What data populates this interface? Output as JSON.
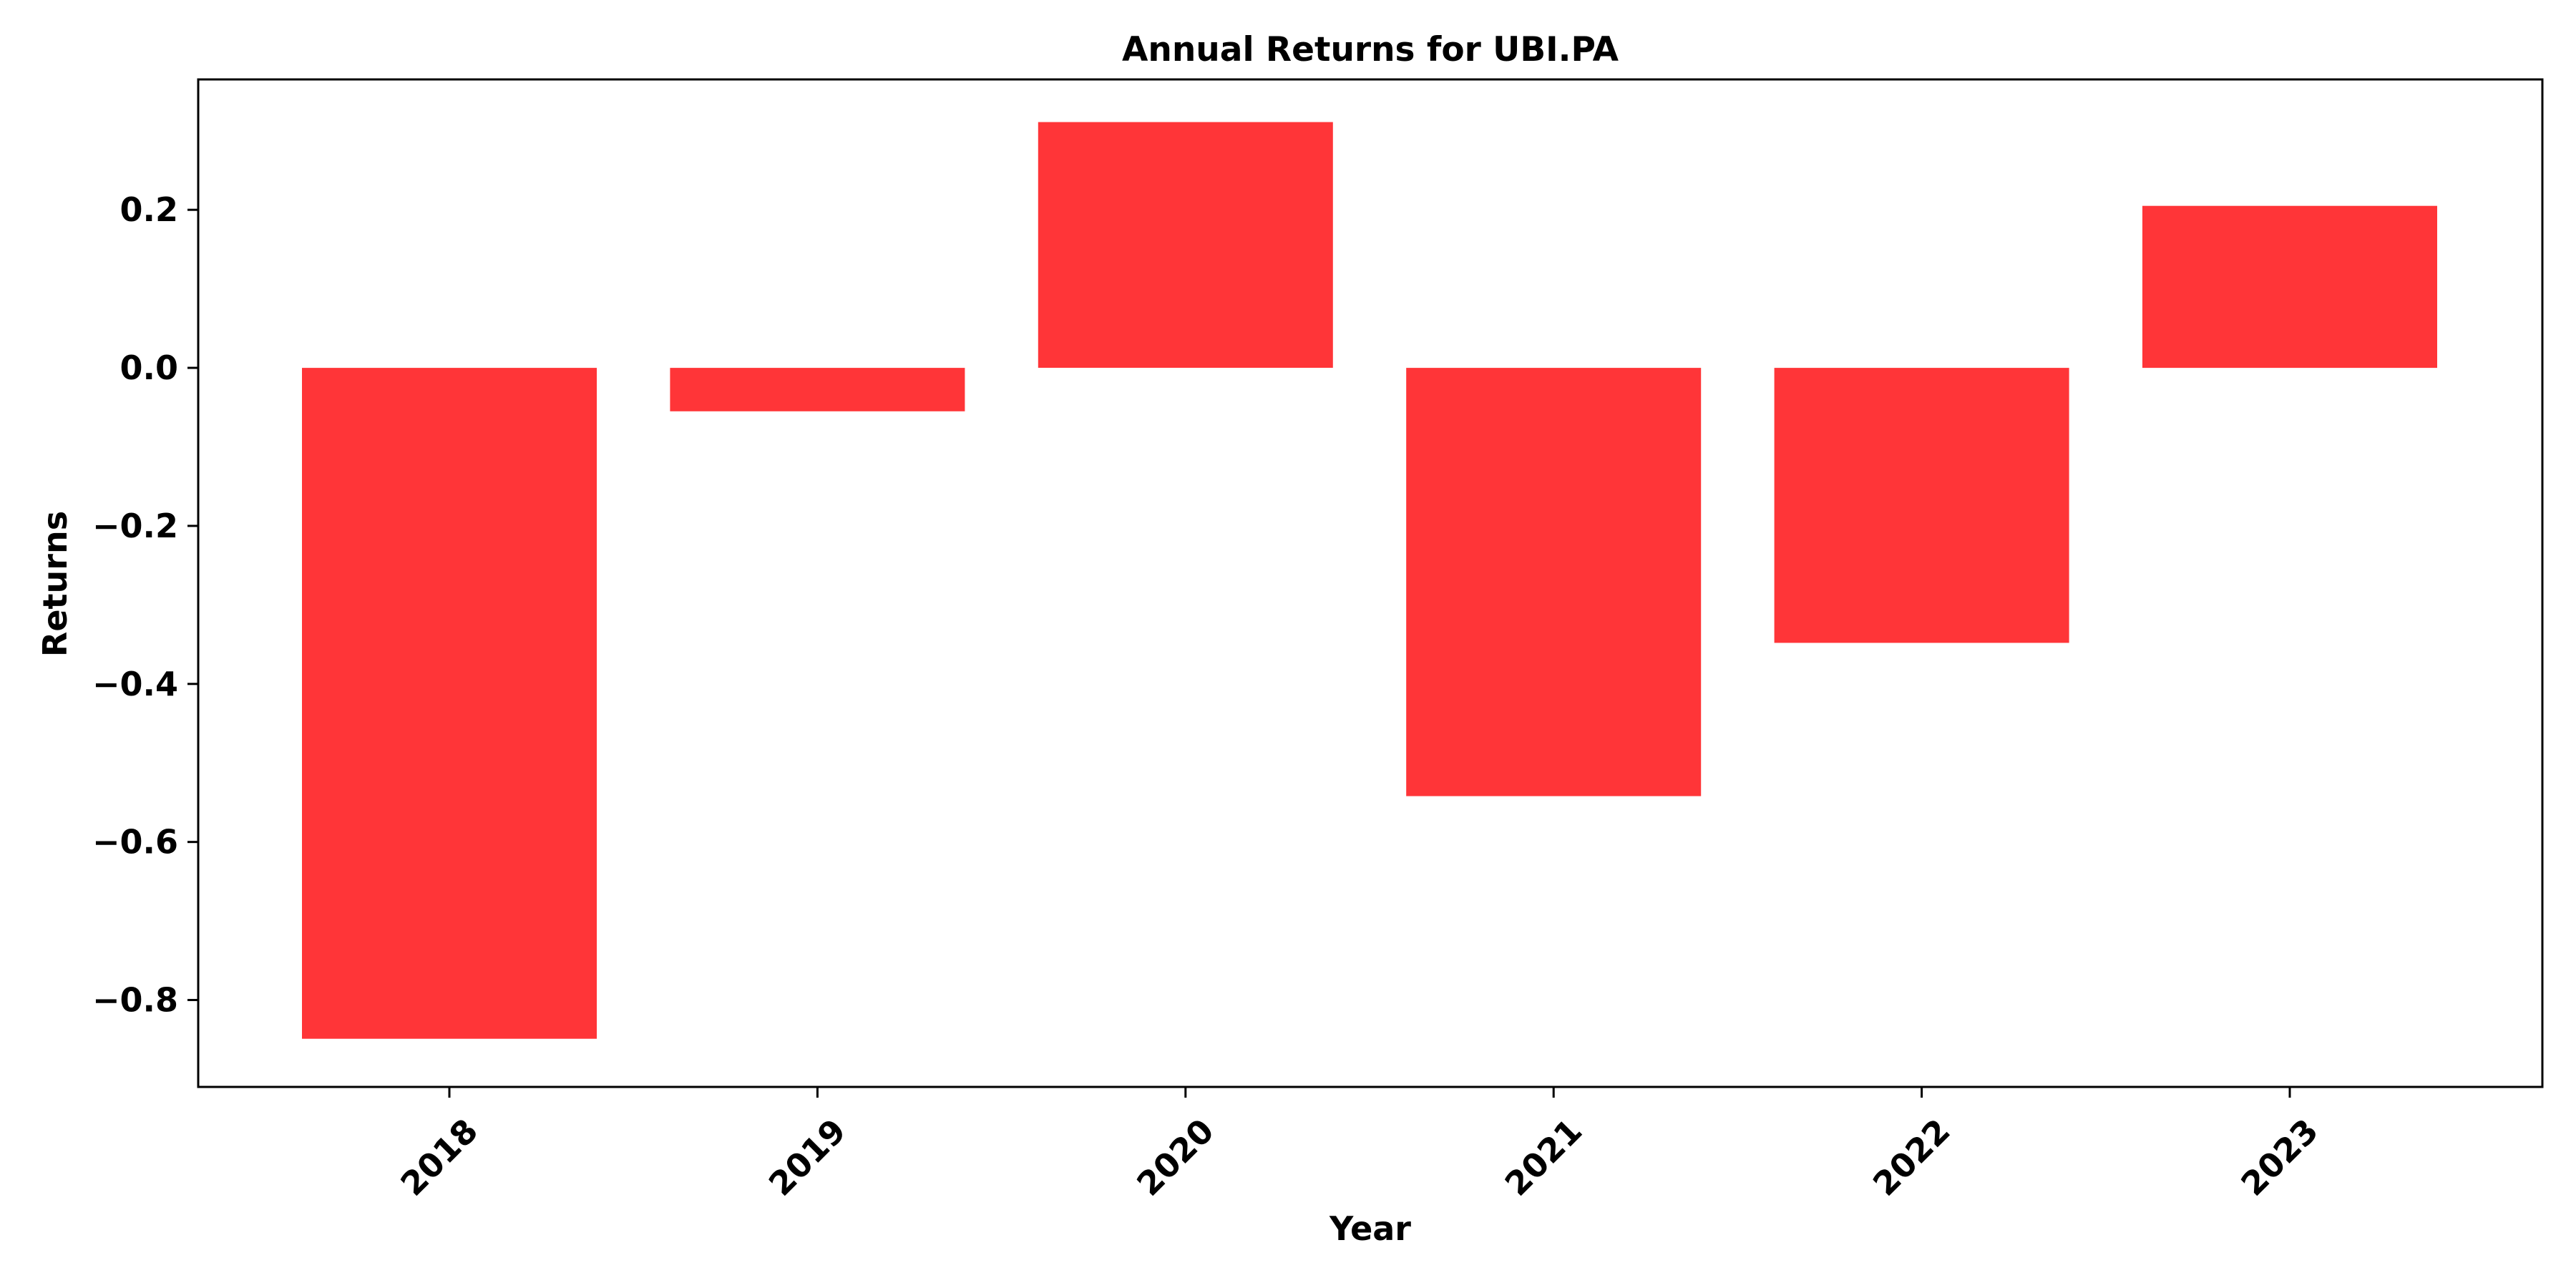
{
  "chart_data": {
    "type": "bar",
    "title": "Annual Returns for UBI.PA",
    "xlabel": "Year",
    "ylabel": "Returns",
    "categories": [
      "2018",
      "2019",
      "2020",
      "2021",
      "2022",
      "2023"
    ],
    "values": [
      -0.849,
      -0.055,
      0.311,
      -0.542,
      -0.348,
      0.205
    ],
    "ylim": [
      -0.91,
      0.365
    ],
    "yticks": [
      0.2,
      0.0,
      -0.2,
      -0.4,
      -0.6,
      -0.8
    ],
    "ytick_labels": [
      "0.2",
      "0.0",
      "−0.2",
      "−0.4",
      "−0.6",
      "−0.8"
    ],
    "bar_color": "#ff3538",
    "grid": false,
    "legend": "none"
  }
}
